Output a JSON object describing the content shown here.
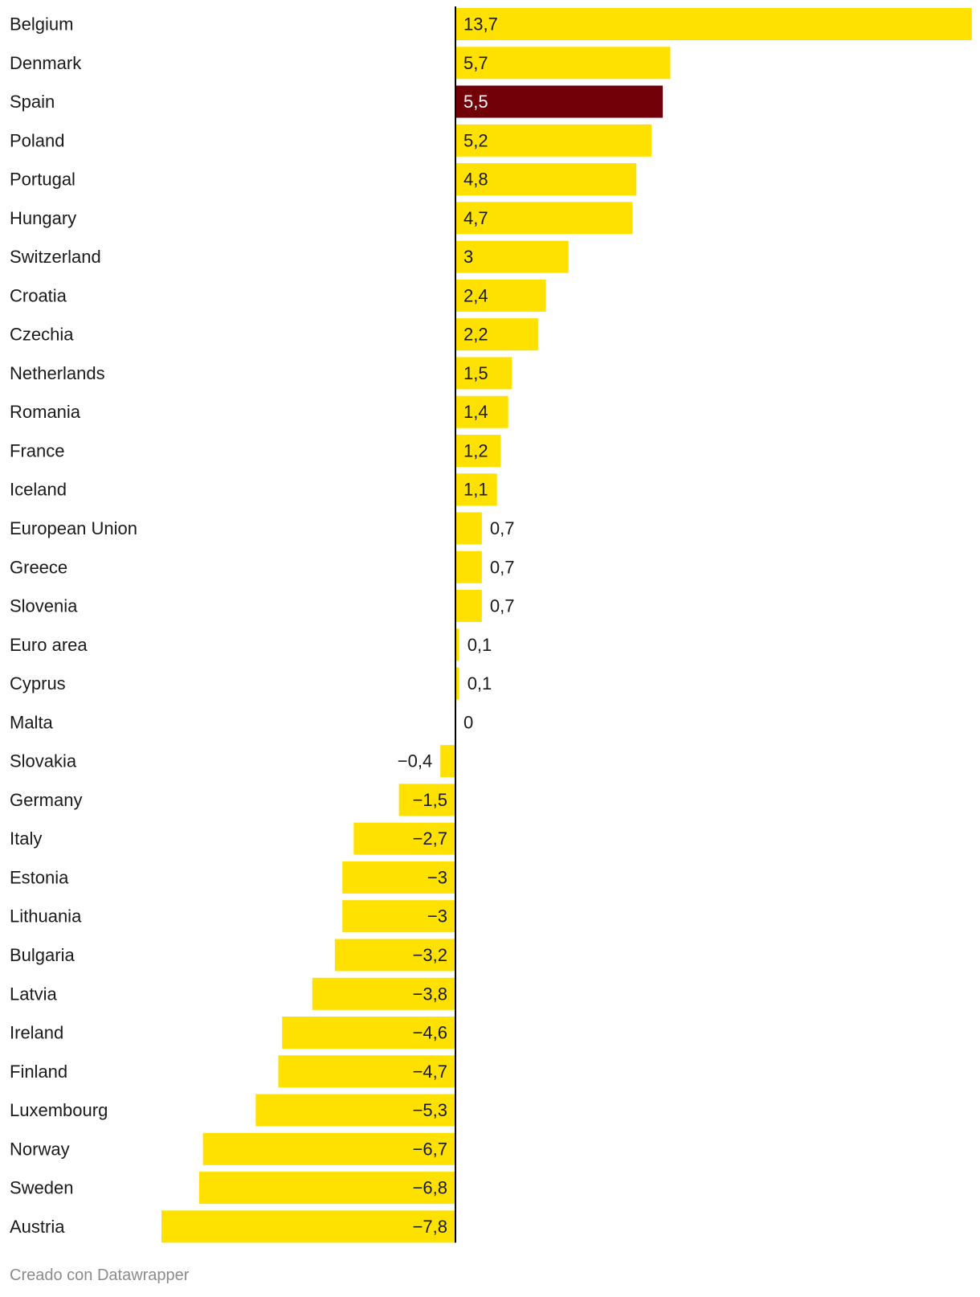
{
  "chart_data": {
    "type": "bar",
    "orientation": "horizontal",
    "title": "",
    "xlabel": "",
    "ylabel": "",
    "xlim": [
      -7.8,
      13.7
    ],
    "grid": false,
    "legend": "none",
    "colors": {
      "default": "#FFE100",
      "highlight": "#720009",
      "axis": "#000000",
      "text_dark": "#1a1a1a",
      "text_light": "#ffffff"
    },
    "categories": [
      "Belgium",
      "Denmark",
      "Spain",
      "Poland",
      "Portugal",
      "Hungary",
      "Switzerland",
      "Croatia",
      "Czechia",
      "Netherlands",
      "Romania",
      "France",
      "Iceland",
      "European Union",
      "Greece",
      "Slovenia",
      "Euro area",
      "Cyprus",
      "Malta",
      "Slovakia",
      "Germany",
      "Italy",
      "Estonia",
      "Lithuania",
      "Bulgaria",
      "Latvia",
      "Ireland",
      "Finland",
      "Luxembourg",
      "Norway",
      "Sweden",
      "Austria"
    ],
    "values": [
      13.7,
      5.7,
      5.5,
      5.2,
      4.8,
      4.7,
      3,
      2.4,
      2.2,
      1.5,
      1.4,
      1.2,
      1.1,
      0.7,
      0.7,
      0.7,
      0.1,
      0.1,
      0,
      -0.4,
      -1.5,
      -2.7,
      -3,
      -3,
      -3.2,
      -3.8,
      -4.6,
      -4.7,
      -5.3,
      -6.7,
      -6.8,
      -7.8
    ],
    "value_labels": [
      "13,7",
      "5,7",
      "5,5",
      "5,2",
      "4,8",
      "4,7",
      "3",
      "2,4",
      "2,2",
      "1,5",
      "1,4",
      "1,2",
      "1,1",
      "0,7",
      "0,7",
      "0,7",
      "0,1",
      "0,1",
      "0",
      "−0,4",
      "−1,5",
      "−2,7",
      "−3",
      "−3",
      "−3,2",
      "−3,8",
      "−4,6",
      "−4,7",
      "−5,3",
      "−6,7",
      "−6,8",
      "−7,8"
    ],
    "highlight": [
      "Spain"
    ]
  },
  "footer": {
    "credit": "Creado con Datawrapper"
  }
}
